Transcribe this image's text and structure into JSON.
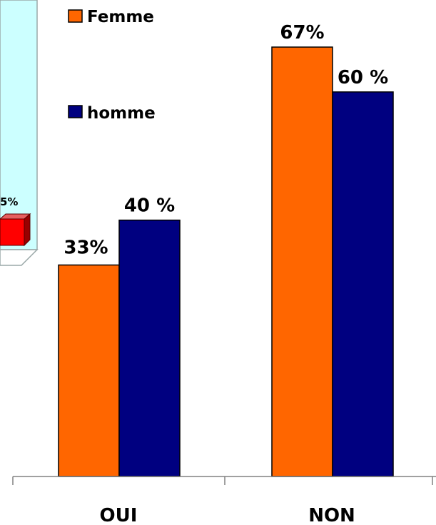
{
  "chart_data": {
    "type": "bar",
    "categories": [
      "OUI",
      "NON"
    ],
    "series": [
      {
        "name": "Femme",
        "values": [
          33,
          67
        ],
        "labels": [
          "33%",
          "67%"
        ],
        "color": "#ff6600"
      },
      {
        "name": "homme",
        "values": [
          40,
          60
        ],
        "labels": [
          "40 %",
          "60 %"
        ],
        "color": "#000080"
      }
    ],
    "ylim": [
      0,
      67
    ],
    "legend": "top",
    "grid": false,
    "background_chart": {
      "visible_label": "5%",
      "panel_color": "#ccffff",
      "bar_color": "#ff0000"
    }
  }
}
